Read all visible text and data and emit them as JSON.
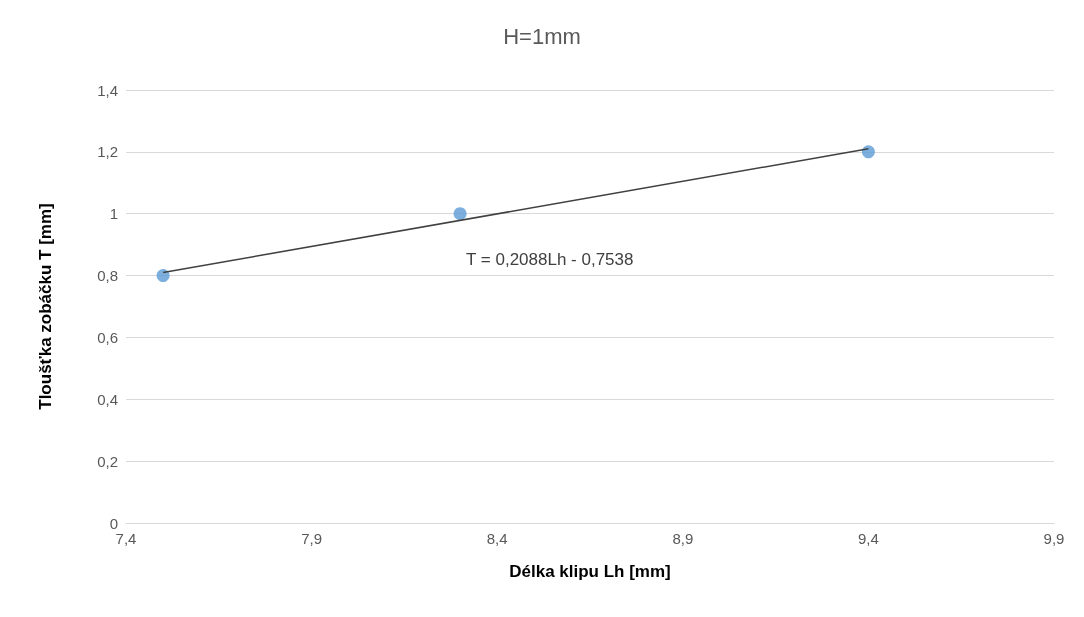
{
  "chart_data": {
    "type": "scatter",
    "title": "H=1mm",
    "xlabel": "Délka klipu Lh [mm]",
    "ylabel": "Tloušťka zobáčku T [mm]",
    "annotations": [
      "T = 0,2088Lh - 0,7538"
    ],
    "series": [
      {
        "color": "#5b9bd5",
        "x": [
          7.5,
          8.3,
          9.4
        ],
        "values": [
          0.8,
          1.0,
          1.2
        ],
        "marker": "circle"
      },
      {
        "type": "line",
        "color": "#404040",
        "x": [
          7.5,
          9.4
        ],
        "values": [
          0.81,
          1.21
        ],
        "marker": "none",
        "line_style": "solid"
      }
    ],
    "xlim": [
      7.4,
      9.9
    ],
    "xticks": [
      {
        "value": 7.4,
        "label": "7,4"
      },
      {
        "value": 7.9,
        "label": "7,9"
      },
      {
        "value": 8.4,
        "label": "8,4"
      },
      {
        "value": 8.9,
        "label": "8,9"
      },
      {
        "value": 9.4,
        "label": "9,4"
      },
      {
        "value": 9.9,
        "label": "9,9"
      }
    ],
    "ylim": [
      0,
      1.4
    ],
    "yticks": [
      0,
      {
        "value": 0.2,
        "label": "0,2"
      },
      {
        "value": 0.4,
        "label": "0,4"
      },
      {
        "value": 0.6,
        "label": "0,6"
      },
      {
        "value": 0.8,
        "label": "0,8"
      },
      1,
      {
        "value": 1.2,
        "label": "1,2"
      },
      {
        "value": 1.4,
        "label": "1,4"
      }
    ],
    "grid": "y"
  }
}
